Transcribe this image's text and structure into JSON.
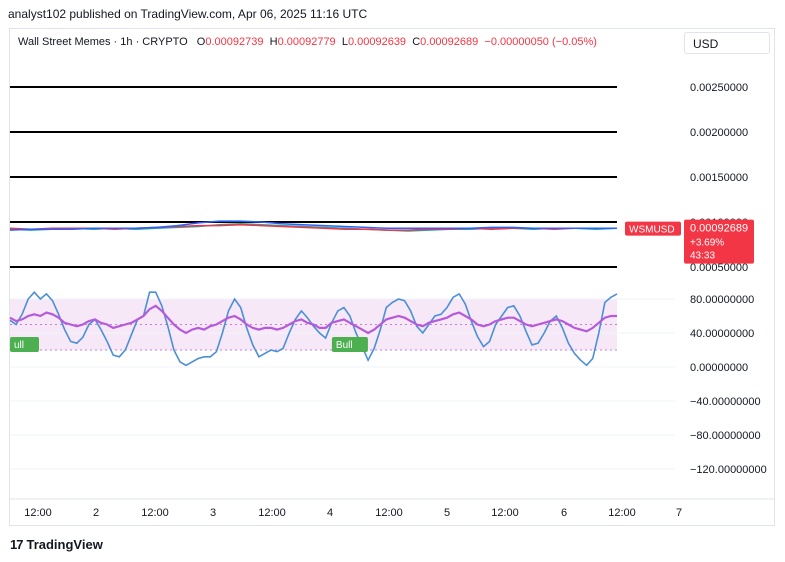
{
  "header": {
    "published": "analyst102 published on TradingView.com, Apr 06, 2025 11:16 UTC"
  },
  "legend": {
    "symbol": "Wall Street Memes · 1h · CRYPTO",
    "o_key": "O",
    "o_val": "0.00092739",
    "h_key": "H",
    "h_val": "0.00092779",
    "l_key": "L",
    "l_val": "0.00092639",
    "c_key": "C",
    "c_val": "0.00092689",
    "change": "−0.00000050 (−0.05%)"
  },
  "currency_button": "USD",
  "price_tag": {
    "ticker": "WSMUSD",
    "price": "0.00092689",
    "change": "+3.69%",
    "countdown": "43:33"
  },
  "footer": {
    "logo_text": "17",
    "brand": "TradingView"
  },
  "colors": {
    "up": "#26a69a",
    "down": "#f23645",
    "stoch_k": "#4a8fd8",
    "stoch_d": "#b65ad9",
    "bull_label": "#4caf50",
    "band_fill": "#f6e8f7"
  },
  "chart_data": [
    {
      "type": "line",
      "panel": "price",
      "y_tick_labels": [
        "0.00250000",
        "0.00200000",
        "0.00150000",
        "0.00100000",
        "0.00050000"
      ],
      "y_ticks": [
        0.0025,
        0.002,
        0.0015,
        0.001,
        0.0005
      ],
      "ylim": [
        0.0003,
        0.0028
      ],
      "horizontal_levels": [
        0.0025,
        0.002,
        0.0015,
        0.001,
        0.0005
      ],
      "series": [
        {
          "color": "#26a69a",
          "values": [
            0.00092,
            0.00091,
            0.00092,
            0.00093,
            0.00092,
            0.00093,
            0.00092,
            0.00093,
            0.00094,
            0.00095,
            0.00097,
            0.00098,
            0.00097,
            0.00096,
            0.00095,
            0.00094,
            0.00093,
            0.00092,
            0.00091,
            0.0009,
            0.00091,
            0.00092,
            0.00092,
            0.00093,
            0.00093,
            0.00092,
            0.00093,
            0.00093,
            0.00092,
            0.00093
          ]
        },
        {
          "color": "#f23645",
          "values": [
            0.00093,
            0.00092,
            0.00093,
            0.00093,
            0.00093,
            0.00092,
            0.00093,
            0.00094,
            0.00095,
            0.00096,
            0.00096,
            0.00097,
            0.00096,
            0.00095,
            0.00094,
            0.00093,
            0.00092,
            0.00092,
            0.00091,
            0.00091,
            0.00092,
            0.00092,
            0.00093,
            0.00092,
            0.00093,
            0.00093,
            0.00092,
            0.00093,
            0.00093,
            0.00093
          ]
        },
        {
          "color": "#2962ff",
          "values": [
            0.00091,
            0.00092,
            0.00092,
            0.00092,
            0.00093,
            0.00093,
            0.00093,
            0.00094,
            0.00096,
            0.00099,
            0.00101,
            0.00101,
            0.001,
            0.00098,
            0.00097,
            0.00096,
            0.00095,
            0.00094,
            0.00093,
            0.00093,
            0.00093,
            0.00093,
            0.00093,
            0.00094,
            0.00094,
            0.00093,
            0.00093,
            0.00093,
            0.00093,
            0.00093
          ]
        }
      ]
    },
    {
      "type": "line",
      "panel": "oscillator",
      "y_tick_labels": [
        "80.00000000",
        "40.00000000",
        "0.00000000",
        "−40.00000000",
        "−80.00000000",
        "−120.00000000"
      ],
      "y_ticks": [
        80,
        40,
        0,
        -40,
        -80,
        -120
      ],
      "ylim": [
        -140,
        100
      ],
      "band": [
        20,
        80
      ],
      "annotations": [
        {
          "text": "Bull",
          "x": 56
        },
        {
          "text": "ull",
          "x": 0
        }
      ],
      "series": [
        {
          "color": "#4a8fd8",
          "values": [
            55,
            50,
            62,
            80,
            88,
            80,
            86,
            78,
            62,
            44,
            30,
            28,
            35,
            50,
            56,
            44,
            30,
            14,
            12,
            20,
            38,
            56,
            60,
            88,
            88,
            72,
            48,
            20,
            6,
            2,
            6,
            10,
            12,
            12,
            18,
            40,
            66,
            80,
            70,
            46,
            26,
            12,
            16,
            20,
            18,
            22,
            40,
            56,
            66,
            58,
            48,
            40,
            34,
            52,
            66,
            70,
            60,
            40,
            24,
            8,
            22,
            44,
            70,
            76,
            80,
            78,
            66,
            48,
            40,
            50,
            60,
            62,
            70,
            82,
            86,
            74,
            54,
            36,
            24,
            30,
            50,
            60,
            70,
            72,
            60,
            42,
            26,
            28,
            40,
            54,
            60,
            46,
            28,
            16,
            8,
            2,
            10,
            40,
            76,
            82,
            86
          ]
        },
        {
          "color": "#b65ad9",
          "values": [
            58,
            54,
            56,
            60,
            62,
            60,
            64,
            62,
            58,
            52,
            50,
            48,
            50,
            54,
            56,
            52,
            50,
            46,
            48,
            50,
            52,
            56,
            60,
            68,
            72,
            66,
            58,
            50,
            44,
            40,
            44,
            46,
            44,
            48,
            50,
            54,
            58,
            60,
            56,
            50,
            46,
            44,
            46,
            46,
            44,
            46,
            50,
            54,
            56,
            52,
            50,
            46,
            46,
            52,
            54,
            56,
            52,
            48,
            44,
            40,
            44,
            50,
            56,
            58,
            60,
            58,
            54,
            50,
            48,
            52,
            54,
            56,
            58,
            62,
            64,
            60,
            56,
            50,
            48,
            50,
            54,
            56,
            58,
            58,
            54,
            50,
            48,
            50,
            52,
            54,
            56,
            54,
            50,
            46,
            44,
            42,
            46,
            52,
            58,
            60,
            60
          ]
        }
      ]
    }
  ],
  "x_tick_labels": [
    "12:00",
    "2",
    "12:00",
    "3",
    "12:00",
    "4",
    "12:00",
    "5",
    "12:00",
    "6",
    "12:00",
    "7"
  ]
}
